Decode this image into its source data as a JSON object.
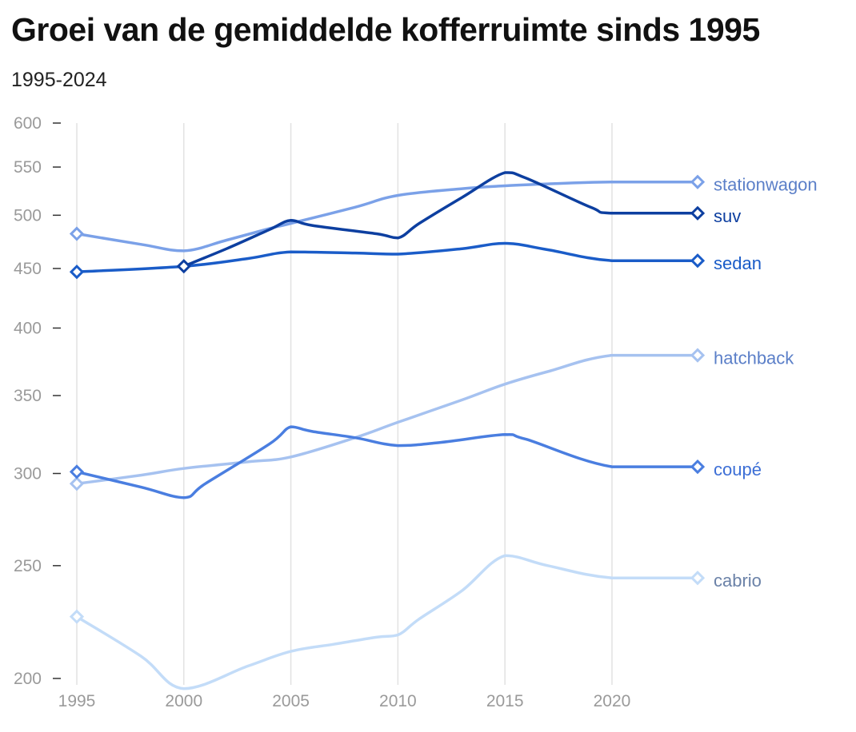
{
  "chart_data": {
    "type": "line",
    "title": "Groei van de gemiddelde kofferruimte sinds 1995",
    "subtitle": "1995-2024",
    "xlabel": "",
    "ylabel": "",
    "x_ticks": [
      1995,
      2000,
      2005,
      2010,
      2015,
      2020
    ],
    "y_ticks": [
      200,
      250,
      300,
      350,
      400,
      450,
      500,
      550,
      600
    ],
    "y_scale": "log",
    "ylim": [
      200,
      600
    ],
    "xlim": [
      1995,
      2024
    ],
    "grid": "vertical",
    "legend": "direct labels at line ends (right)",
    "series": [
      {
        "name": "stationwagon",
        "color": "#7ba1e8",
        "label_color": "#5b7fc8",
        "points": [
          [
            1995,
            482
          ],
          [
            1998,
            472
          ],
          [
            2000,
            466
          ],
          [
            2002,
            476
          ],
          [
            2004,
            487
          ],
          [
            2005,
            492
          ],
          [
            2008,
            508
          ],
          [
            2010,
            520
          ],
          [
            2013,
            527
          ],
          [
            2015,
            530
          ],
          [
            2017,
            532
          ],
          [
            2020,
            534
          ],
          [
            2024,
            534
          ]
        ]
      },
      {
        "name": "suv",
        "color": "#0d3fa0",
        "label_color": "#0d3fa0",
        "points": [
          [
            2000,
            452
          ],
          [
            2002,
            468
          ],
          [
            2004,
            486
          ],
          [
            2005,
            495
          ],
          [
            2006,
            490
          ],
          [
            2009,
            482
          ],
          [
            2010,
            478
          ],
          [
            2011,
            492
          ],
          [
            2013,
            518
          ],
          [
            2015,
            544
          ],
          [
            2016,
            538
          ],
          [
            2019,
            508
          ],
          [
            2020,
            502
          ],
          [
            2024,
            502
          ]
        ]
      },
      {
        "name": "sedan",
        "color": "#1a5cc8",
        "label_color": "#1a5cc8",
        "points": [
          [
            1995,
            447
          ],
          [
            2000,
            452
          ],
          [
            2003,
            459
          ],
          [
            2005,
            465
          ],
          [
            2008,
            464
          ],
          [
            2010,
            463
          ],
          [
            2013,
            468
          ],
          [
            2015,
            473
          ],
          [
            2017,
            467
          ],
          [
            2020,
            457
          ],
          [
            2024,
            457
          ]
        ]
      },
      {
        "name": "hatchback",
        "color": "#a6c2f0",
        "label_color": "#5b7fc8",
        "points": [
          [
            1995,
            294
          ],
          [
            1998,
            299
          ],
          [
            2000,
            303
          ],
          [
            2003,
            307
          ],
          [
            2005,
            310
          ],
          [
            2008,
            322
          ],
          [
            2010,
            332
          ],
          [
            2013,
            347
          ],
          [
            2015,
            358
          ],
          [
            2017,
            367
          ],
          [
            2020,
            379
          ],
          [
            2024,
            379
          ]
        ]
      },
      {
        "name": "coupé",
        "color": "#4a7ee0",
        "label_color": "#3d6fd6",
        "points": [
          [
            1995,
            301
          ],
          [
            1998,
            292
          ],
          [
            2000,
            286
          ],
          [
            2001,
            294
          ],
          [
            2004,
            318
          ],
          [
            2005,
            329
          ],
          [
            2006,
            326
          ],
          [
            2008,
            322
          ],
          [
            2010,
            317
          ],
          [
            2012,
            319
          ],
          [
            2015,
            324
          ],
          [
            2016,
            321
          ],
          [
            2020,
            304
          ],
          [
            2024,
            304
          ]
        ]
      },
      {
        "name": "cabrio",
        "color": "#c3dcf8",
        "label_color": "#6b82a8",
        "points": [
          [
            1995,
            226
          ],
          [
            1998,
            209
          ],
          [
            2000,
            196
          ],
          [
            2003,
            205
          ],
          [
            2005,
            211
          ],
          [
            2007,
            214
          ],
          [
            2009,
            217
          ],
          [
            2010,
            218
          ],
          [
            2011,
            225
          ],
          [
            2013,
            238
          ],
          [
            2015,
            255
          ],
          [
            2017,
            250
          ],
          [
            2020,
            244
          ],
          [
            2024,
            244
          ]
        ]
      }
    ]
  }
}
